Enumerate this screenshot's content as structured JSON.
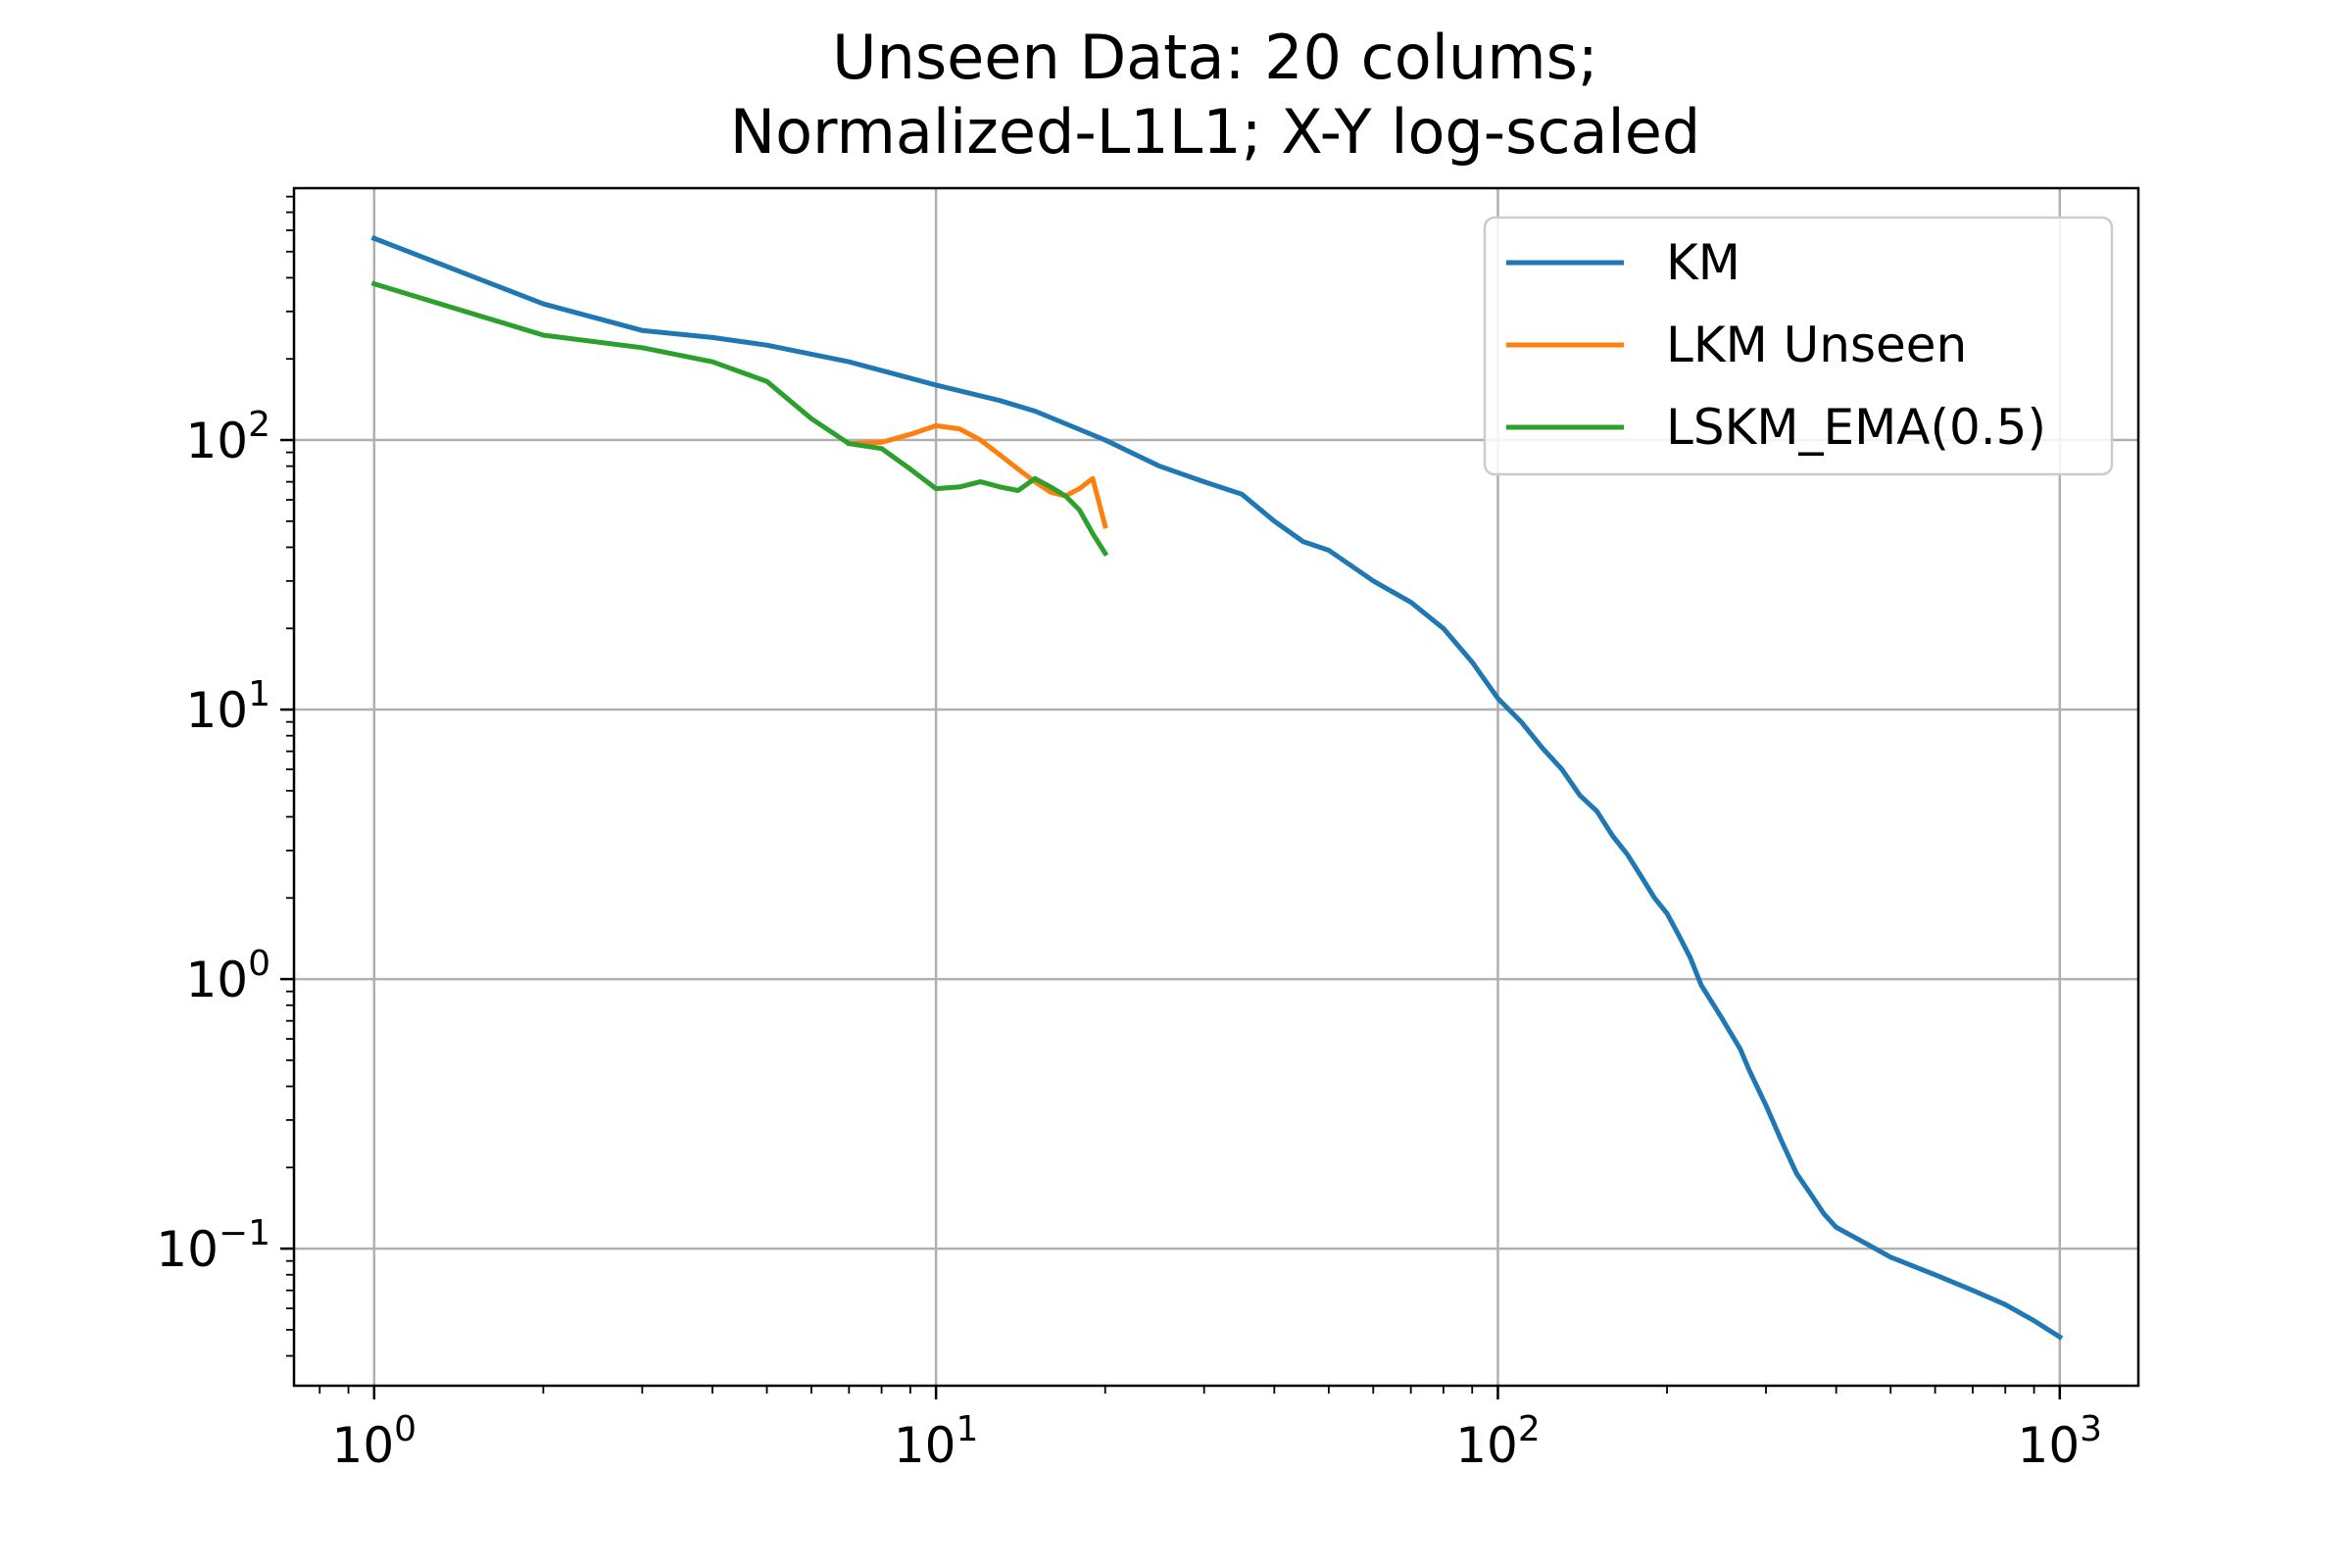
{
  "chart_data": {
    "type": "line",
    "title_lines": [
      "Unseen Data: 20 colums;",
      "Normalized-L1L1; X-Y log-scaled"
    ],
    "xlabel": "",
    "ylabel": "",
    "xscale": "log",
    "yscale": "log",
    "xlim": [
      0.72,
      1380
    ],
    "ylim": [
      0.031,
      860
    ],
    "grid": true,
    "legend_position": "top-right",
    "x_ticks": [
      {
        "base": "10",
        "exp": "0",
        "value": 1
      },
      {
        "base": "10",
        "exp": "1",
        "value": 10
      },
      {
        "base": "10",
        "exp": "2",
        "value": 100
      },
      {
        "base": "10",
        "exp": "3",
        "value": 1000
      }
    ],
    "y_ticks": [
      {
        "base": "10",
        "exp": "−1",
        "value": 0.1
      },
      {
        "base": "10",
        "exp": "0",
        "value": 1
      },
      {
        "base": "10",
        "exp": "1",
        "value": 10
      },
      {
        "base": "10",
        "exp": "2",
        "value": 100
      }
    ],
    "series": [
      {
        "name": "KM",
        "color": "#1f77b4",
        "points": [
          [
            1,
            560
          ],
          [
            2,
            320
          ],
          [
            3,
            255
          ],
          [
            4,
            240
          ],
          [
            5,
            225
          ],
          [
            7,
            195
          ],
          [
            10,
            160
          ],
          [
            13,
            140
          ],
          [
            15,
            128
          ],
          [
            20,
            100
          ],
          [
            25,
            80
          ],
          [
            30,
            70
          ],
          [
            35,
            63
          ],
          [
            40,
            50
          ],
          [
            45,
            42
          ],
          [
            50,
            39
          ],
          [
            60,
            30
          ],
          [
            70,
            25
          ],
          [
            80,
            20
          ],
          [
            90,
            15
          ],
          [
            100,
            11
          ],
          [
            110,
            9
          ],
          [
            120,
            7.2
          ],
          [
            130,
            6
          ],
          [
            140,
            4.8
          ],
          [
            150,
            4.2
          ],
          [
            160,
            3.4
          ],
          [
            170,
            2.9
          ],
          [
            180,
            2.4
          ],
          [
            190,
            2.0
          ],
          [
            200,
            1.75
          ],
          [
            210,
            1.45
          ],
          [
            220,
            1.2
          ],
          [
            230,
            0.95
          ],
          [
            250,
            0.72
          ],
          [
            270,
            0.55
          ],
          [
            280,
            0.46
          ],
          [
            300,
            0.34
          ],
          [
            320,
            0.25
          ],
          [
            340,
            0.19
          ],
          [
            360,
            0.16
          ],
          [
            380,
            0.135
          ],
          [
            400,
            0.12
          ],
          [
            450,
            0.105
          ],
          [
            500,
            0.093
          ],
          [
            600,
            0.08
          ],
          [
            700,
            0.07
          ],
          [
            800,
            0.062
          ],
          [
            900,
            0.054
          ],
          [
            1000,
            0.047
          ]
        ]
      },
      {
        "name": "LKM Unseen",
        "color": "#ff7f0e",
        "points": [
          [
            7,
            97
          ],
          [
            8,
            98
          ],
          [
            9,
            105
          ],
          [
            10,
            113
          ],
          [
            11,
            110
          ],
          [
            12,
            100
          ],
          [
            13,
            88
          ],
          [
            14,
            78
          ],
          [
            15,
            70
          ],
          [
            16,
            64
          ],
          [
            17,
            62
          ],
          [
            18,
            66
          ],
          [
            19,
            72
          ],
          [
            20,
            48
          ]
        ]
      },
      {
        "name": "LSKM_EMA(0.5)",
        "color": "#2ca02c",
        "points": [
          [
            1,
            380
          ],
          [
            2,
            245
          ],
          [
            3,
            220
          ],
          [
            4,
            195
          ],
          [
            5,
            165
          ],
          [
            6,
            120
          ],
          [
            7,
            97
          ],
          [
            8,
            93
          ],
          [
            9,
            78
          ],
          [
            10,
            66
          ],
          [
            11,
            67
          ],
          [
            12,
            70
          ],
          [
            13,
            67
          ],
          [
            14,
            65
          ],
          [
            15,
            72
          ],
          [
            16,
            67
          ],
          [
            17,
            62
          ],
          [
            18,
            55
          ],
          [
            19,
            45
          ],
          [
            20,
            38
          ]
        ]
      }
    ]
  }
}
